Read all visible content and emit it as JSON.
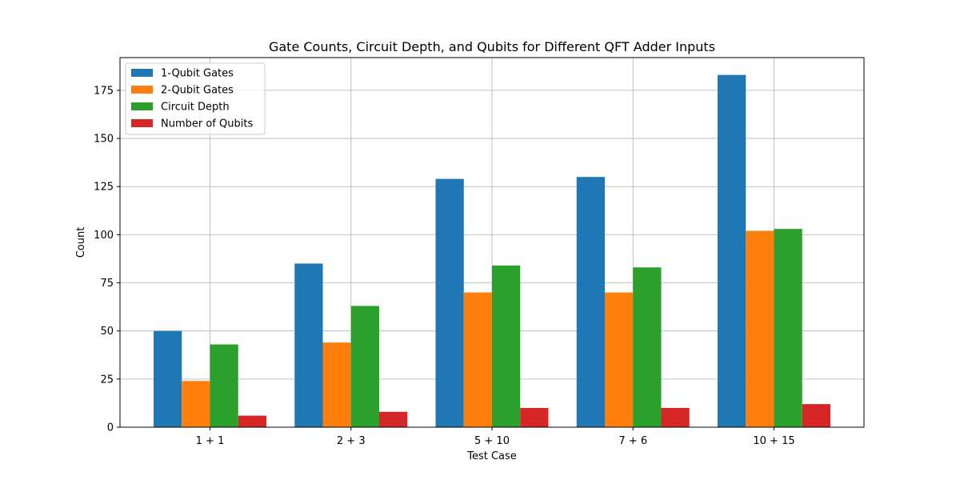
{
  "chart_data": {
    "type": "bar",
    "title": "Gate Counts, Circuit Depth, and Qubits for Different QFT Adder Inputs",
    "xlabel": "Test Case",
    "ylabel": "Count",
    "categories": [
      "1 + 1",
      "2 + 3",
      "5 + 10",
      "7 + 6",
      "10 + 15"
    ],
    "ylim": [
      0,
      192
    ],
    "yticks": [
      0,
      25,
      50,
      75,
      100,
      125,
      150,
      175
    ],
    "grid": true,
    "legend_position": "top-left",
    "series": [
      {
        "name": "1-Qubit Gates",
        "color": "#1f77b4",
        "values": [
          50,
          85,
          129,
          130,
          183
        ]
      },
      {
        "name": "2-Qubit Gates",
        "color": "#ff7f0e",
        "values": [
          24,
          44,
          70,
          70,
          102
        ]
      },
      {
        "name": "Circuit Depth",
        "color": "#2ca02c",
        "values": [
          43,
          63,
          84,
          83,
          103
        ]
      },
      {
        "name": "Number of Qubits",
        "color": "#d62728",
        "values": [
          6,
          8,
          10,
          10,
          12
        ]
      }
    ]
  }
}
